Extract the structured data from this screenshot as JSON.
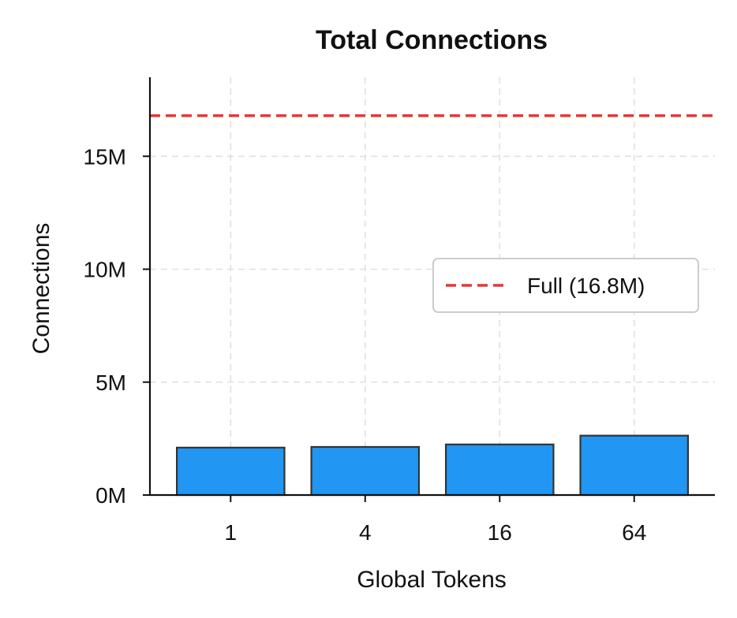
{
  "chart_data": {
    "type": "bar",
    "title": "Total Connections",
    "xlabel": "Global Tokens",
    "ylabel": "Connections",
    "categories": [
      "1",
      "4",
      "16",
      "64"
    ],
    "values": [
      2.1,
      2.13,
      2.24,
      2.63
    ],
    "value_unit": "M",
    "ylim": [
      0,
      18.5
    ],
    "yticks": [
      0,
      5,
      10,
      15
    ],
    "ytick_labels": [
      "0M",
      "5M",
      "10M",
      "15M"
    ],
    "grid": true,
    "bar_color": "#2196F3",
    "bar_edge_color": "#333333",
    "reference_line": {
      "value": 16.8,
      "label": "Full (16.8M)",
      "color": "#E53935",
      "style": "dashed"
    },
    "legend_position": "center-right"
  }
}
